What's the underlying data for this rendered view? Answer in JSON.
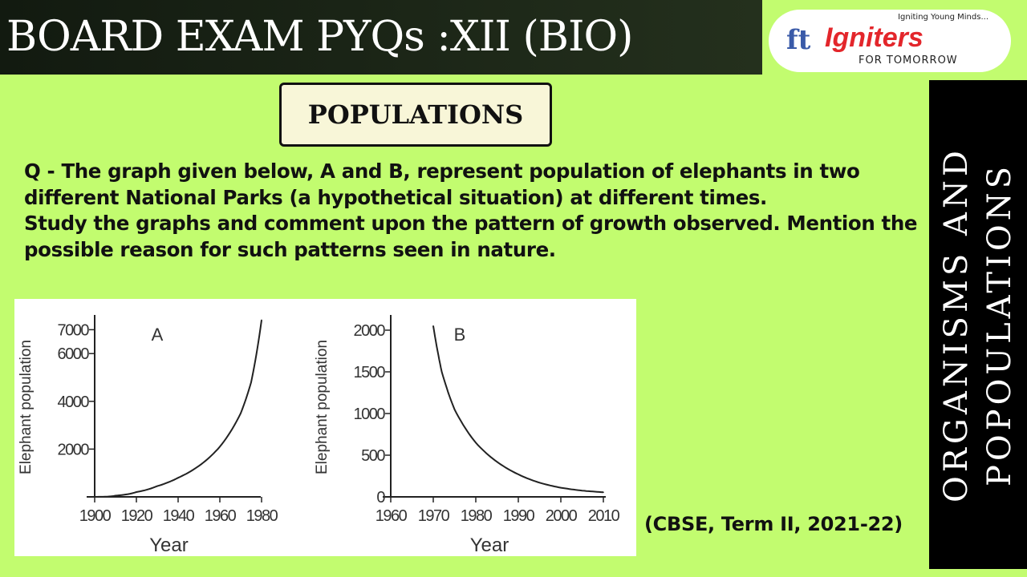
{
  "header": {
    "title": "BOARD EXAM PYQs :XII (BIO)"
  },
  "logo": {
    "brand": "Igniters",
    "tagline": "Igniting Young Minds...",
    "subtitle": "FOR TOMORROW",
    "brand_color": "#e3262b"
  },
  "topic": {
    "label": "POPULATIONS"
  },
  "question": {
    "line1": "Q - The graph given below, A and B, represent population of elephants in two different National Parks (a hypothetical situation) at different times.",
    "line2": "Study the graphs and comment upon the pattern of growth observed. Mention the possible reason for such patterns seen in nature."
  },
  "source": "(CBSE, Term II, 2021-22)",
  "side_banner": {
    "line1": "ORGANISMS AND",
    "line2": "POPOULATIONS"
  },
  "colors": {
    "background": "#c2fc6f",
    "header_bg": "#121a10",
    "side_bg": "#000000"
  },
  "chart_data": [
    {
      "type": "line",
      "title": "A",
      "xlabel": "Year",
      "ylabel": "Elephant population",
      "xlim": [
        1900,
        1985
      ],
      "ylim": [
        0,
        7500
      ],
      "xticks": [
        "1900",
        "1920",
        "1940",
        "1960",
        "1980"
      ],
      "yticks": [
        "2000",
        "4000",
        "6000",
        "7000"
      ],
      "x": [
        1900,
        1910,
        1920,
        1930,
        1940,
        1950,
        1960,
        1970,
        1975,
        1980
      ],
      "values": [
        0,
        50,
        200,
        450,
        800,
        1300,
        2100,
        3500,
        4800,
        7400
      ],
      "grid": false
    },
    {
      "type": "line",
      "title": "B",
      "xlabel": "Year",
      "ylabel": "Elephant population",
      "xlim": [
        1960,
        2015
      ],
      "ylim": [
        0,
        2100
      ],
      "xticks": [
        "1960",
        "1970",
        "1980",
        "1990",
        "2000",
        "2010"
      ],
      "yticks": [
        "0",
        "500",
        "1000",
        "1500",
        "2000"
      ],
      "x": [
        1970,
        1972,
        1975,
        1980,
        1985,
        1990,
        1995,
        2000,
        2005,
        2010
      ],
      "values": [
        2050,
        1500,
        1050,
        650,
        420,
        270,
        170,
        110,
        75,
        55
      ],
      "grid": false
    }
  ]
}
